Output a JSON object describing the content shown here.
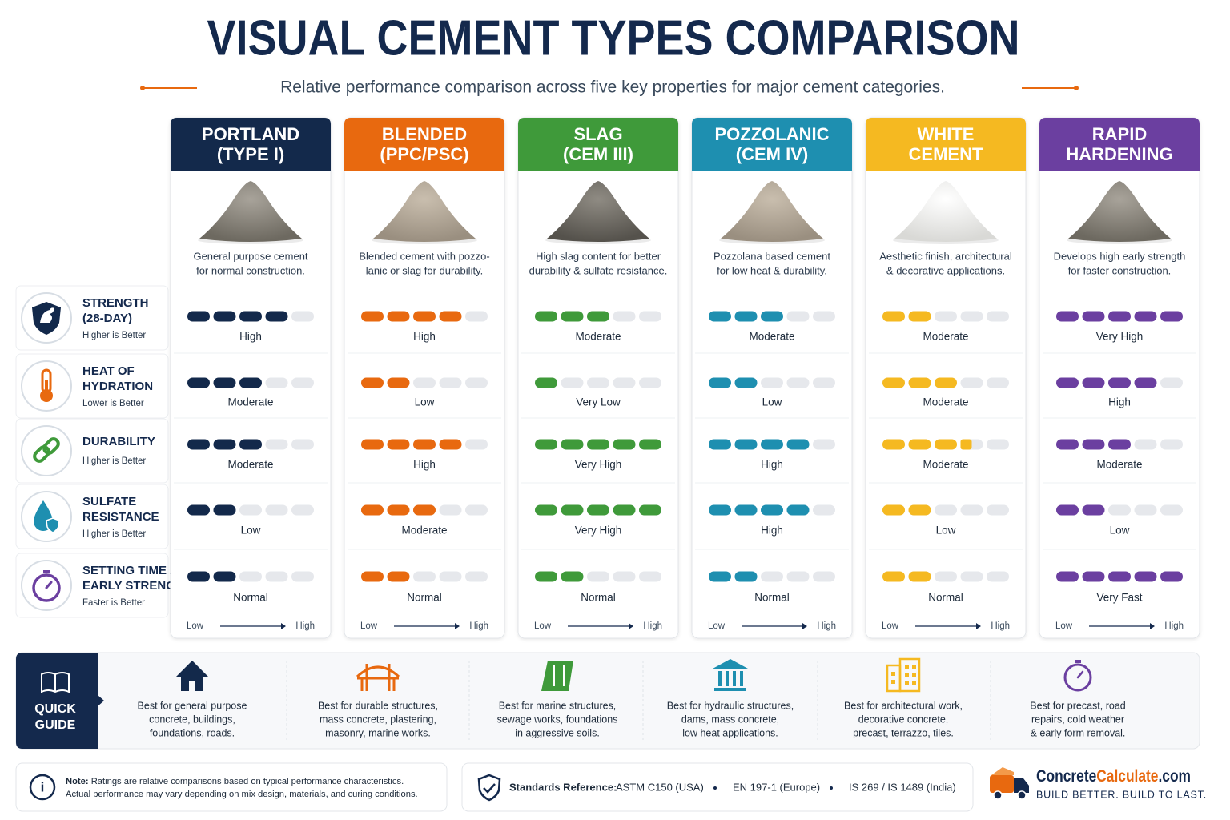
{
  "title": "VISUAL CEMENT TYPES COMPARISON",
  "subtitle": "Relative performance comparison across five key properties for major cement categories.",
  "scale_max": 5,
  "scale": {
    "low": "Low",
    "high": "High"
  },
  "properties": [
    {
      "name": [
        "STRENGTH",
        "(28-DAY)"
      ],
      "note": "Higher is Better"
    },
    {
      "name": [
        "HEAT OF",
        "HYDRATION"
      ],
      "note": "Lower is Better"
    },
    {
      "name": [
        "DURABILITY"
      ],
      "note": "Higher is Better"
    },
    {
      "name": [
        "SULFATE",
        "RESISTANCE"
      ],
      "note": "Higher is Better"
    },
    {
      "name": [
        "SETTING TIME /",
        "EARLY STRENGTH"
      ],
      "note": "Faster is Better"
    }
  ],
  "cements": [
    {
      "name": [
        "PORTLAND",
        "(TYPE I)"
      ],
      "color": "#13294b",
      "description": [
        "General purpose cement",
        "for normal construction."
      ],
      "ratings": [
        {
          "level": 4,
          "label": "High"
        },
        {
          "level": 3,
          "label": "Moderate"
        },
        {
          "level": 3,
          "label": "Moderate"
        },
        {
          "level": 2,
          "label": "Low"
        },
        {
          "level": 2,
          "label": "Normal"
        }
      ],
      "guide": [
        "Best for general purpose",
        "concrete, buildings,",
        "foundations, roads."
      ]
    },
    {
      "name": [
        "BLENDED",
        "(PPC/PSC)"
      ],
      "color": "#e8690f",
      "description": [
        "Blended cement with pozzo-",
        "lanic or slag for durability."
      ],
      "ratings": [
        {
          "level": 4,
          "label": "High"
        },
        {
          "level": 2,
          "label": "Low"
        },
        {
          "level": 4,
          "label": "High"
        },
        {
          "level": 3,
          "label": "Moderate"
        },
        {
          "level": 2,
          "label": "Normal"
        }
      ],
      "guide": [
        "Best for durable structures,",
        "mass concrete, plastering,",
        "masonry, marine works."
      ]
    },
    {
      "name": [
        "SLAG",
        "(CEM III)"
      ],
      "color": "#3f9a3a",
      "description": [
        "High slag content for better",
        "durability & sulfate resistance."
      ],
      "ratings": [
        {
          "level": 3,
          "label": "Moderate"
        },
        {
          "level": 1,
          "label": "Very Low"
        },
        {
          "level": 5,
          "label": "Very High"
        },
        {
          "level": 5,
          "label": "Very High"
        },
        {
          "level": 2,
          "label": "Normal"
        }
      ],
      "guide": [
        "Best for marine structures,",
        "sewage works, foundations",
        "in aggressive soils."
      ]
    },
    {
      "name": [
        "POZZOLANIC",
        "(CEM IV)"
      ],
      "color": "#1e8fb0",
      "description": [
        "Pozzolana based cement",
        "for low heat & durability."
      ],
      "ratings": [
        {
          "level": 3,
          "label": "Moderate"
        },
        {
          "level": 2,
          "label": "Low"
        },
        {
          "level": 4,
          "label": "High"
        },
        {
          "level": 4,
          "label": "High"
        },
        {
          "level": 2,
          "label": "Normal"
        }
      ],
      "guide": [
        "Best for hydraulic structures,",
        "dams, mass concrete,",
        "low heat applications."
      ]
    },
    {
      "name": [
        "WHITE",
        "CEMENT"
      ],
      "color": "#f5b921",
      "description": [
        "Aesthetic finish, architectural",
        "& decorative applications."
      ],
      "ratings": [
        {
          "level": 2,
          "label": "Moderate"
        },
        {
          "level": 3,
          "label": "Moderate"
        },
        {
          "level": 3.5,
          "label": "Moderate"
        },
        {
          "level": 2,
          "label": "Low"
        },
        {
          "level": 2,
          "label": "Normal"
        }
      ],
      "guide": [
        "Best for architectural work,",
        "decorative concrete,",
        "precast, terrazzo, tiles."
      ]
    },
    {
      "name": [
        "RAPID",
        "HARDENING"
      ],
      "color": "#6b3fa0",
      "description": [
        "Develops high early strength",
        "for faster construction."
      ],
      "ratings": [
        {
          "level": 5,
          "label": "Very High"
        },
        {
          "level": 4,
          "label": "High"
        },
        {
          "level": 3,
          "label": "Moderate"
        },
        {
          "level": 2,
          "label": "Low"
        },
        {
          "level": 5,
          "label": "Very Fast"
        }
      ],
      "guide": [
        "Best for precast, road",
        "repairs, cold weather",
        "& early form removal."
      ]
    }
  ],
  "quick_guide": [
    "QUICK",
    "GUIDE"
  ],
  "note": {
    "label": "Note:",
    "text": [
      " Ratings are relative comparisons based on typical performance characteristics.",
      "Actual performance may vary depending on mix design, materials, and curing conditions."
    ]
  },
  "standards": {
    "label": "Standards Reference:",
    "items": [
      "ASTM C150 (USA)",
      "EN 197-1 (Europe)",
      "IS 269 / IS 1489 (India)"
    ]
  },
  "brand": {
    "name": [
      "Concrete",
      "Calculate",
      ".com"
    ],
    "tagline": "BUILD BETTER. BUILD TO LAST."
  }
}
